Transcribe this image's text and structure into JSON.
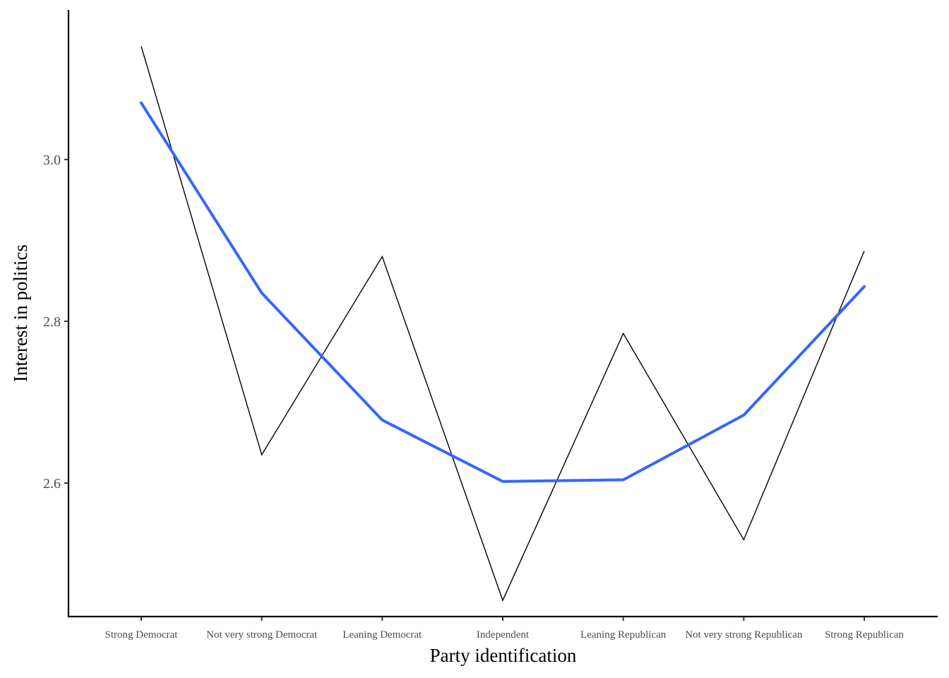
{
  "chart_data": {
    "type": "line",
    "title": "",
    "xlabel": "Party identification",
    "ylabel": "Interest in politics",
    "categories": [
      "Strong Democrat",
      "Not very strong Democrat",
      "Leaning Democrat",
      "Independent",
      "Leaning Republican",
      "Not very strong Republican",
      "Strong Republican"
    ],
    "series": [
      {
        "values": [
          3.14,
          2.635,
          2.88,
          2.455,
          2.785,
          2.53,
          2.887
        ],
        "color": "#000000",
        "style": "thin"
      },
      {
        "values": [
          3.07,
          2.835,
          2.678,
          2.602,
          2.604,
          2.684,
          2.843
        ],
        "color": "#3366ff",
        "style": "smooth"
      }
    ],
    "ylim": [
      2.435,
      3.185
    ],
    "yticks": [
      "2.6",
      "2.8",
      "3.0"
    ],
    "ytick_values": [
      2.6,
      2.8,
      3.0
    ],
    "grid": false,
    "legend": "none"
  }
}
